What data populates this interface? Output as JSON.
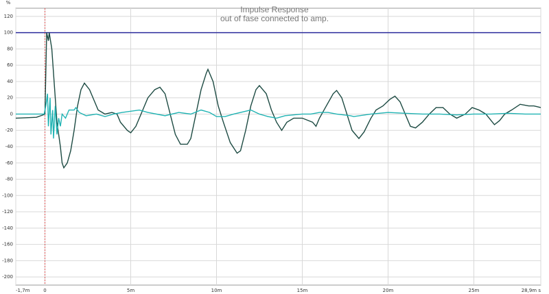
{
  "chart_data": {
    "type": "line",
    "title": "Impulse Response",
    "subtitle": "out of fase connected to amp.",
    "y_unit": "%",
    "xlim": [
      -1.7,
      28.9
    ],
    "ylim": [
      -210,
      130
    ],
    "xticks": [
      {
        "value": -1.7,
        "label": "-1,7m"
      },
      0,
      {
        "value": 5,
        "label": "5m"
      },
      {
        "value": 10,
        "label": "10m"
      },
      {
        "value": 15,
        "label": "15m"
      },
      {
        "value": 20,
        "label": "20m"
      },
      {
        "value": 25,
        "label": "25m"
      },
      {
        "value": 28.9,
        "label": "28,9m s"
      }
    ],
    "yticks": [
      120,
      100,
      80,
      60,
      40,
      20,
      0,
      -20,
      -40,
      -60,
      -80,
      -100,
      -120,
      -140,
      -160,
      -180,
      -200
    ],
    "grid": true,
    "hline": {
      "value": 100,
      "color": "#2b2b9c"
    },
    "vline": {
      "value": 0,
      "color": "#e05050"
    },
    "series": [
      {
        "color": "#1c4a42",
        "x": [
          -1.7,
          -0.5,
          -0.1,
          0,
          0.1,
          0.2,
          0.25,
          0.4,
          0.5,
          0.6,
          0.7,
          0.9,
          1.0,
          1.1,
          1.3,
          1.5,
          1.7,
          1.9,
          2.1,
          2.3,
          2.6,
          2.9,
          3.1,
          3.5,
          3.9,
          4.2,
          4.4,
          4.8,
          5.0,
          5.3,
          5.6,
          6.0,
          6.4,
          6.7,
          7.0,
          7.3,
          7.6,
          7.9,
          8.3,
          8.5,
          8.8,
          9.1,
          9.4,
          9.5,
          9.8,
          10.1,
          10.4,
          10.8,
          11.2,
          11.4,
          11.7,
          12.0,
          12.3,
          12.5,
          12.9,
          13.2,
          13.5,
          13.8,
          14.1,
          14.5,
          15.0,
          15.6,
          15.8,
          16.0,
          16.4,
          16.8,
          17.0,
          17.3,
          17.6,
          17.9,
          18.3,
          18.6,
          19.0,
          19.3,
          19.7,
          20.1,
          20.4,
          20.7,
          21.0,
          21.3,
          21.6,
          22.0,
          22.4,
          22.8,
          23.2,
          23.6,
          24.0,
          24.5,
          24.9,
          25.3,
          25.7,
          26.2,
          26.5,
          26.8,
          27.2,
          27.7,
          28.2,
          28.5,
          28.9
        ],
        "values": [
          -5,
          -4,
          -1,
          0,
          100,
          90,
          100,
          80,
          50,
          20,
          -10,
          -40,
          -60,
          -66,
          -60,
          -45,
          -20,
          10,
          30,
          38,
          30,
          15,
          5,
          0,
          2,
          0,
          -10,
          -20,
          -23,
          -15,
          0,
          20,
          30,
          33,
          25,
          0,
          -25,
          -37,
          -37,
          -30,
          0,
          30,
          50,
          55,
          40,
          10,
          -10,
          -35,
          -48,
          -45,
          -20,
          10,
          30,
          35,
          25,
          5,
          -10,
          -20,
          -10,
          -5,
          -5,
          -10,
          -15,
          -5,
          10,
          25,
          29,
          20,
          0,
          -20,
          -30,
          -22,
          -5,
          5,
          10,
          18,
          22,
          15,
          0,
          -15,
          -17,
          -10,
          0,
          8,
          8,
          0,
          -5,
          0,
          8,
          5,
          0,
          -13,
          -8,
          0,
          5,
          12,
          10,
          10,
          8
        ]
      },
      {
        "color": "#1fb3b3",
        "x": [
          -1.7,
          -0.05,
          0.05,
          0.15,
          0.2,
          0.3,
          0.35,
          0.45,
          0.5,
          0.6,
          0.7,
          0.8,
          0.9,
          1.0,
          1.2,
          1.4,
          1.7,
          1.8,
          2.0,
          2.4,
          3.0,
          3.5,
          4.0,
          4.5,
          5.5,
          6.0,
          7.0,
          7.8,
          8.5,
          9.1,
          9.6,
          10.0,
          10.5,
          11.0,
          12.0,
          12.5,
          13.0,
          13.5,
          14.0,
          15.0,
          15.5,
          16.0,
          16.5,
          17.0,
          17.8,
          18.0,
          19.0,
          20.0,
          21.0,
          22.0,
          23.0,
          24.0,
          25.0,
          26.0,
          27.0,
          28.0,
          28.9
        ],
        "values": [
          0,
          0,
          10,
          25,
          -15,
          20,
          -25,
          5,
          -30,
          10,
          -25,
          -5,
          -15,
          0,
          -5,
          5,
          5,
          8,
          2,
          -2,
          0,
          -3,
          0,
          2,
          5,
          2,
          -2,
          2,
          0,
          5,
          2,
          -3,
          -3,
          0,
          5,
          0,
          -3,
          -5,
          -2,
          0,
          0,
          2,
          2,
          0,
          -2,
          -3,
          0,
          2,
          1,
          0,
          0,
          -1,
          0,
          0,
          1,
          0,
          0
        ]
      }
    ]
  }
}
